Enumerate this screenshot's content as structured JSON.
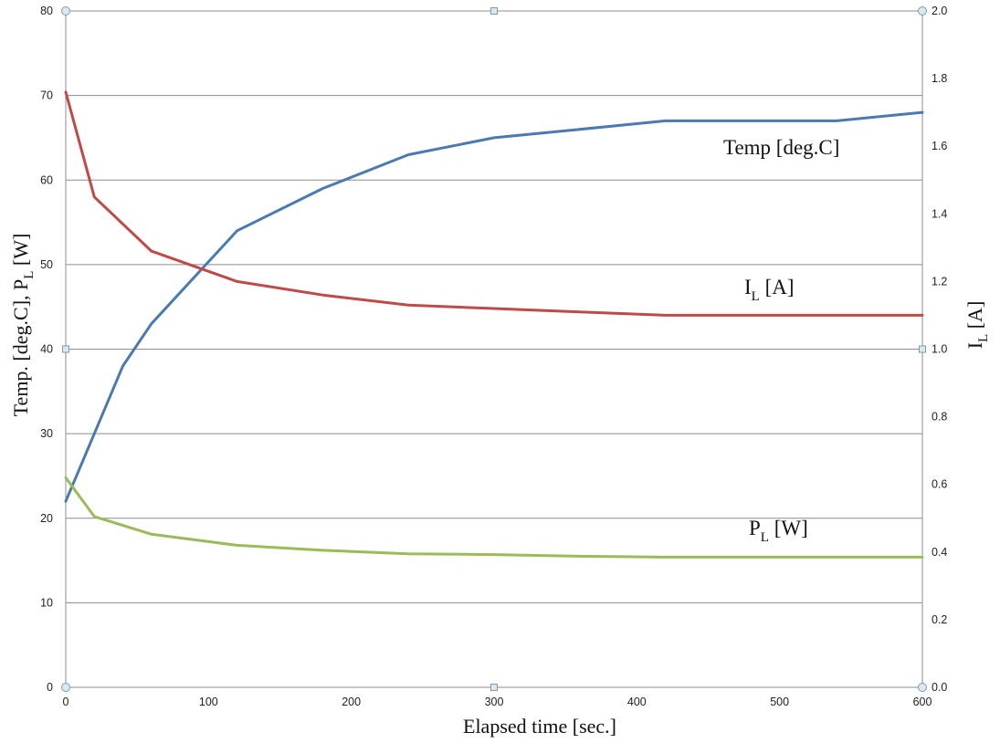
{
  "chart_data": {
    "type": "line",
    "xlabel": "Elapsed time [sec.]",
    "ylabel_left": {
      "main": "Temp. [deg.C], P",
      "sub": "L",
      "tail": " [W]"
    },
    "ylabel_right": {
      "main": "I",
      "sub": "L",
      "tail": " [A]"
    },
    "x_ticks": [
      "0",
      "100",
      "200",
      "300",
      "400",
      "500",
      "600"
    ],
    "y_left_ticks": [
      "0",
      "10",
      "20",
      "30",
      "40",
      "50",
      "60",
      "70",
      "80"
    ],
    "y_right_ticks": [
      "0.0",
      "0.2",
      "0.4",
      "0.6",
      "0.8",
      "1.0",
      "1.2",
      "1.4",
      "1.6",
      "1.8",
      "2.0"
    ],
    "xlim": [
      0,
      600
    ],
    "ylim_left": [
      0,
      80
    ],
    "ylim_right": [
      0,
      2.0
    ],
    "grid": true,
    "series": [
      {
        "key": "temp",
        "label": {
          "main": "Temp [deg.C]",
          "sub": "",
          "tail": ""
        },
        "color": "#4a7ab0",
        "axis": "left",
        "x": [
          0,
          20,
          40,
          60,
          120,
          180,
          240,
          300,
          360,
          420,
          480,
          540,
          600
        ],
        "values": [
          22,
          30,
          38,
          43,
          54,
          59,
          63,
          65,
          66,
          67,
          67,
          67,
          68
        ]
      },
      {
        "key": "il",
        "label": {
          "main": "I",
          "sub": "L",
          "tail": " [A]"
        },
        "color": "#be4b48",
        "axis": "right",
        "x": [
          0,
          20,
          60,
          120,
          180,
          240,
          300,
          360,
          420,
          480,
          540,
          600
        ],
        "values": [
          1.76,
          1.45,
          1.29,
          1.2,
          1.16,
          1.13,
          1.12,
          1.11,
          1.1,
          1.1,
          1.1,
          1.1
        ]
      },
      {
        "key": "pl",
        "label": {
          "main": "P",
          "sub": "L",
          "tail": " [W]"
        },
        "color": "#9bbb59",
        "axis": "left",
        "x": [
          0,
          20,
          60,
          120,
          180,
          240,
          300,
          360,
          420,
          480,
          540,
          600
        ],
        "values": [
          24.8,
          20.2,
          18.1,
          16.8,
          16.2,
          15.8,
          15.7,
          15.5,
          15.4,
          15.4,
          15.4,
          15.4
        ]
      }
    ]
  }
}
